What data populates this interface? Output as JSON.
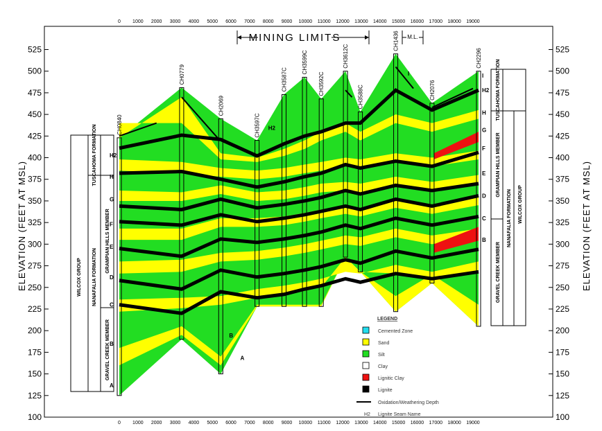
{
  "diagram": {
    "mining_limits_label": "MINING LIMITS",
    "ml_label": "M.L.",
    "y_axis_label": "ELEVATION (FEET AT MSL)",
    "elev_range": [
      100,
      540
    ],
    "dist_range": [
      0,
      19300
    ],
    "elevation_ticks": [
      "100",
      "125",
      "150",
      "175",
      "200",
      "225",
      "250",
      "275",
      "300",
      "325",
      "350",
      "375",
      "400",
      "425",
      "450",
      "475",
      "500",
      "525"
    ],
    "distance_ticks": [
      "0",
      "1000",
      "2000",
      "3000",
      "4000",
      "5000",
      "6000",
      "7000",
      "8000",
      "9000",
      "10000",
      "11000",
      "12000",
      "13000",
      "14000",
      "15000",
      "16000",
      "17000",
      "18000",
      "19000"
    ],
    "wells": [
      {
        "name": "CH0840",
        "dist": 0,
        "top": 423,
        "bottom": 125
      },
      {
        "name": "CH0779",
        "dist": 3350,
        "top": 481,
        "bottom": 190
      },
      {
        "name": "CH2069",
        "dist": 5450,
        "top": 445,
        "bottom": 150
      },
      {
        "name": "CH3597C",
        "dist": 7400,
        "top": 420,
        "bottom": 228
      },
      {
        "name": "CH3587C",
        "dist": 8850,
        "top": 473,
        "bottom": 228
      },
      {
        "name": "CH3599C",
        "dist": 9950,
        "top": 493,
        "bottom": 228
      },
      {
        "name": "CH3592C",
        "dist": 10850,
        "top": 468,
        "bottom": 228
      },
      {
        "name": "CH3612C",
        "dist": 12150,
        "top": 500,
        "bottom": 285
      },
      {
        "name": "CH3588C",
        "dist": 12950,
        "top": 453,
        "bottom": 268
      },
      {
        "name": "CH1436",
        "dist": 14850,
        "top": 520,
        "bottom": 222
      },
      {
        "name": "CH2076",
        "dist": 16800,
        "top": 463,
        "bottom": 255
      },
      {
        "name": "CH2296",
        "dist": 19300,
        "top": 500,
        "bottom": 205
      }
    ],
    "seams_left": [
      "H2",
      "H",
      "G",
      "F",
      "E",
      "D",
      "C",
      "B",
      "A"
    ],
    "seams_right": [
      "I",
      "H2",
      "H",
      "G",
      "F",
      "E",
      "D",
      "C",
      "B"
    ],
    "extra_labels": {
      "h2_mid": "H2",
      "b_mid": "B",
      "a_mid": "A",
      "i_mid": "I"
    },
    "left_column": {
      "formation_top": "TUSCAHOMA FORMATION",
      "group": "WILCOX GROUP",
      "formation": "NANAFALIA FORMATION",
      "member_upper": "GRAMPIAN HILLS MEMBER",
      "member_lower": "GRAVEL CREEK MEMBER"
    },
    "right_column": {
      "formation_top": "TUSCAHOMA FORMATION",
      "member_upper": "GRAMPIAN HILLS MEMBER",
      "formation": "NANAFALIA FORMATION",
      "group": "WILCOX GROUP",
      "member_lower": "GRAVEL CREEK MEMBER"
    }
  },
  "legend": {
    "title": "LEGEND",
    "items": [
      {
        "label": "Cemented Zone",
        "color": "#22ddee"
      },
      {
        "label": "Sand",
        "color": "#ffff00"
      },
      {
        "label": "Silt",
        "color": "#22dd22"
      },
      {
        "label": "Clay",
        "color": "#ffffff"
      },
      {
        "label": "Lignitic Clay",
        "color": "#ee1111"
      },
      {
        "label": "Lignite",
        "color": "#000000"
      }
    ],
    "oxidation_label": "Oxidation/Weathering Depth",
    "seam_symbol": "H2",
    "seam_label": "Lignite Seam Name"
  },
  "colors": {
    "silt": "#22dd22",
    "sand": "#ffff00",
    "lignite": "#000000",
    "clay": "#ffffff",
    "lignitic_clay": "#ee1111",
    "cemented": "#22ddee"
  }
}
